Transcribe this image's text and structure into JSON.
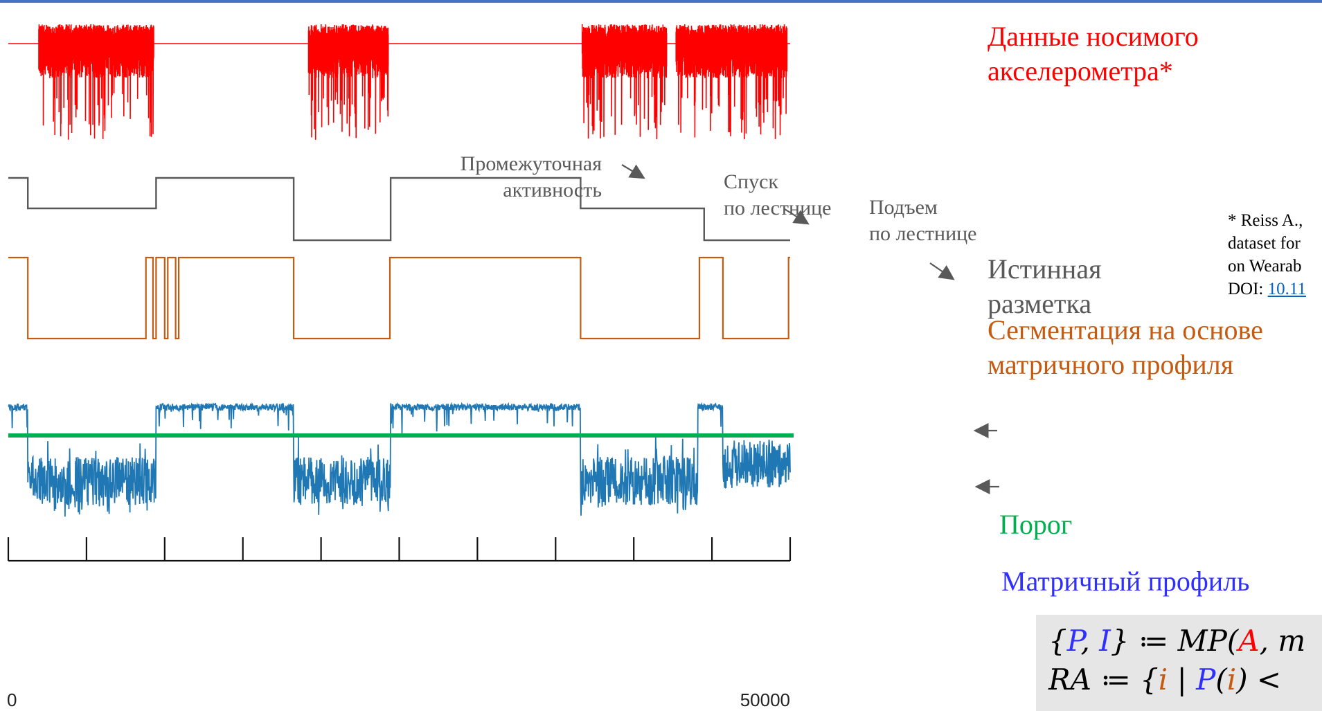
{
  "labels": {
    "accelerometer": [
      "Данные носимого",
      "акселерометра*"
    ],
    "ground_truth": [
      "Истинная",
      "разметка"
    ],
    "segmentation": [
      "Сегментация на основе",
      "матричного профиля"
    ],
    "threshold": "Порог",
    "matrix_profile": "Матричный профиль",
    "intermediate_activity": [
      "Промежуточная",
      "активность"
    ],
    "stairs_down": [
      "Спуск",
      "по лестнице"
    ],
    "stairs_up": [
      "Подъем",
      "по лестнице"
    ]
  },
  "reference": {
    "lines": [
      "* Reiss A.,",
      "dataset for",
      "on Wearab"
    ],
    "doi_prefix": "DOI: ",
    "doi_link": "10.11"
  },
  "formula": {
    "line1": [
      "{",
      "P",
      ", ",
      "I",
      "} ≔ ",
      "MP",
      "(",
      "A",
      ", ",
      "m"
    ],
    "line2": [
      "RA",
      " ≔ {",
      "i",
      " | ",
      "P",
      "(",
      "i",
      ") <"
    ]
  },
  "axis": {
    "min": 0,
    "max": 50000,
    "tick_labels": [
      "0",
      "50000"
    ],
    "tick_count": 11
  },
  "ground_truth_levels": [
    {
      "x0": 0,
      "x1": 1250,
      "level": 3
    },
    {
      "x0": 1250,
      "x1": 9450,
      "level": 2
    },
    {
      "x0": 9450,
      "x1": 18250,
      "level": 3
    },
    {
      "x0": 18250,
      "x1": 24450,
      "level": 1
    },
    {
      "x0": 24450,
      "x1": 36600,
      "level": 3
    },
    {
      "x0": 36600,
      "x1": 44500,
      "level": 2
    },
    {
      "x0": 44500,
      "x1": 50000,
      "level": 1
    }
  ],
  "threshold_level": 0.66,
  "colors": {
    "accelerometer": "#ff0000",
    "ground_truth": "#595959",
    "segmentation": "#c55a11",
    "matrix_profile": "#1f77b4",
    "threshold": "#00b050",
    "arrow": "#595959"
  }
}
